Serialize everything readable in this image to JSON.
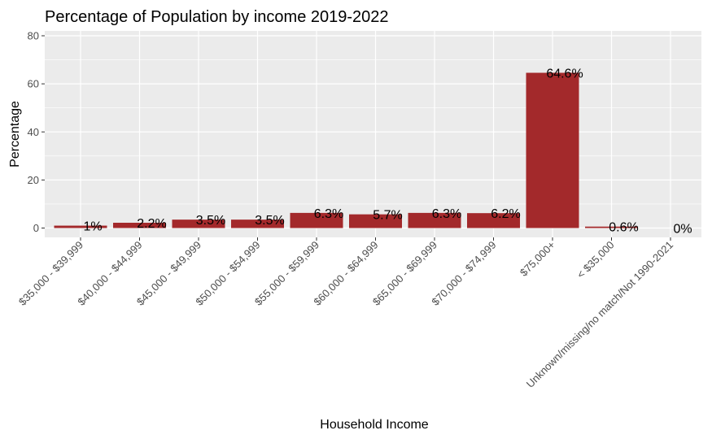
{
  "chart_data": {
    "type": "bar",
    "title": "Percentage of Population by income 2019-2022",
    "xlabel": "Household Income",
    "ylabel": "Percentage",
    "ylim": [
      0,
      80
    ],
    "yticks": [
      0,
      20,
      40,
      60,
      80
    ],
    "grid": true,
    "categories": [
      "$35,000 - $39,999",
      "$40,000 - $44,999",
      "$45,000 - $49,999",
      "$50,000 - $54,999",
      "$55,000 - $59,999",
      "$60,000 - $64,999",
      "$65,000 - $69,999",
      "$70,000 - $74,999",
      "$75,000+",
      "< $35,000",
      "Unknown/missing/no match/Not 1990-2021"
    ],
    "values": [
      1.0,
      2.2,
      3.5,
      3.5,
      6.3,
      5.7,
      6.3,
      6.2,
      64.6,
      0.6,
      0.0
    ],
    "data_labels": [
      "1%",
      "2.2%",
      "3.5%",
      "3.5%",
      "6.3%",
      "5.7%",
      "6.3%",
      "6.2%",
      "64.6%",
      "0.6%",
      "0%"
    ],
    "bar_color": "#a3292b",
    "panel_color": "#ebebeb"
  }
}
